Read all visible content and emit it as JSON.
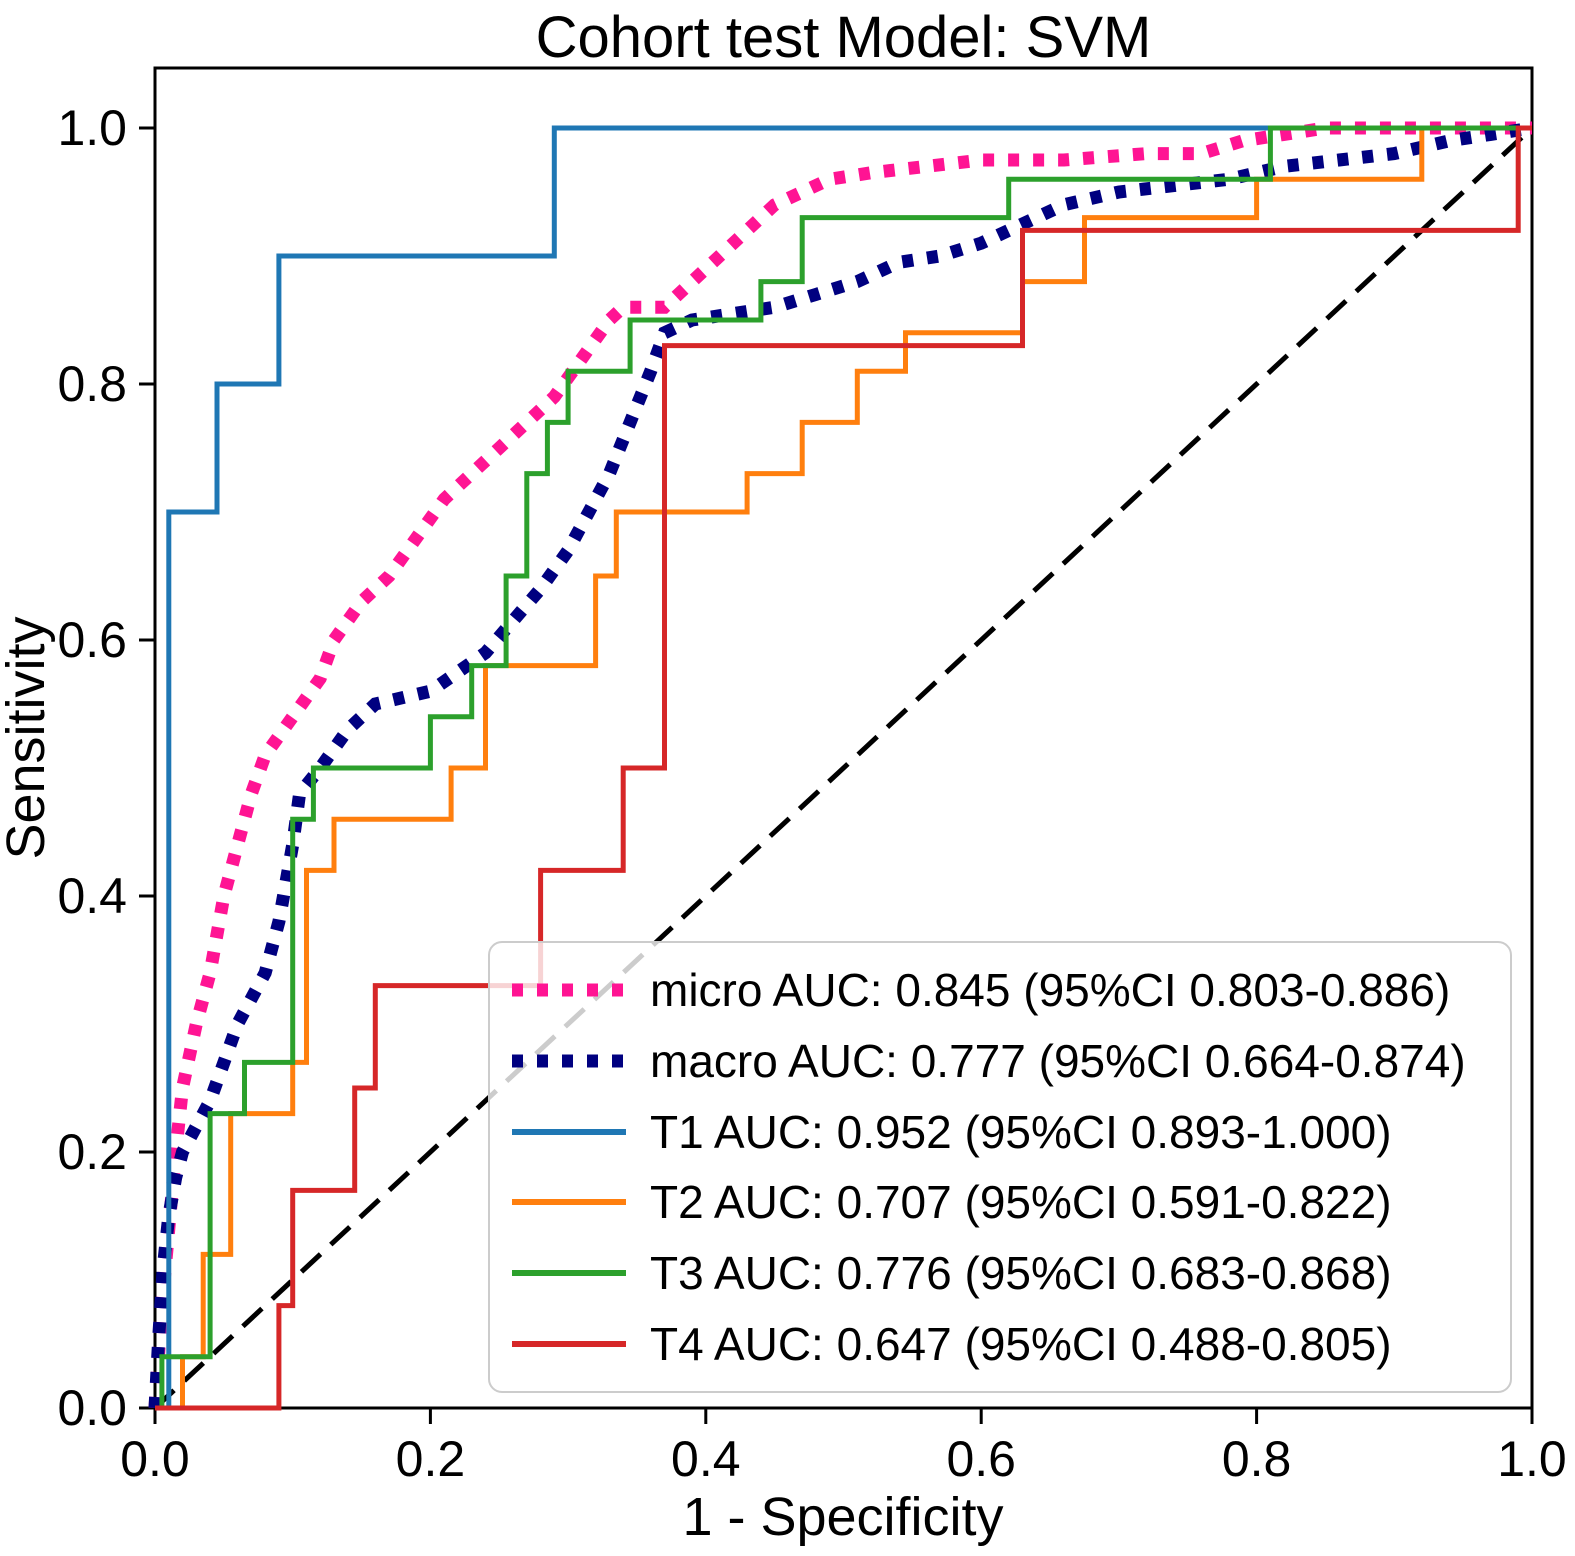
{
  "title": "Cohort test Model: SVM",
  "axes": {
    "xlabel": "1 - Specificity",
    "ylabel": "Sensitivity",
    "x_ticks": [
      "0.0",
      "0.2",
      "0.4",
      "0.6",
      "0.8",
      "1.0"
    ],
    "x_tick_values": [
      0,
      0.2,
      0.4,
      0.6,
      0.8,
      1.0
    ],
    "y_ticks": [
      "0.0",
      "0.2",
      "0.4",
      "0.6",
      "0.8",
      "1.0"
    ],
    "y_tick_values": [
      0,
      0.2,
      0.4,
      0.6,
      0.8,
      1.0
    ]
  },
  "chart_data": {
    "type": "line",
    "subtype": "roc-curves",
    "title": "Cohort test Model: SVM",
    "xlabel": "1 - Specificity",
    "ylabel": "Sensitivity",
    "xlim": [
      0,
      1.0
    ],
    "ylim": [
      0,
      1.047
    ],
    "grid": false,
    "legend_position": "lower right",
    "diagonal": {
      "name": "chance-line",
      "style": "dashed",
      "color": "#000000",
      "points": [
        [
          0,
          0
        ],
        [
          1,
          1
        ]
      ]
    },
    "series": [
      {
        "name": "micro",
        "label": "micro AUC: 0.845 (95%CI 0.803-0.886)",
        "auc": 0.845,
        "ci_low": 0.803,
        "ci_high": 0.886,
        "color": "#ff1493",
        "style": "dotted",
        "points": [
          [
            0,
            0
          ],
          [
            0.005,
            0.08
          ],
          [
            0.01,
            0.14
          ],
          [
            0.015,
            0.2
          ],
          [
            0.02,
            0.25
          ],
          [
            0.03,
            0.3
          ],
          [
            0.04,
            0.34
          ],
          [
            0.05,
            0.4
          ],
          [
            0.06,
            0.44
          ],
          [
            0.07,
            0.48
          ],
          [
            0.08,
            0.51
          ],
          [
            0.1,
            0.54
          ],
          [
            0.12,
            0.57
          ],
          [
            0.13,
            0.6
          ],
          [
            0.15,
            0.63
          ],
          [
            0.17,
            0.65
          ],
          [
            0.19,
            0.68
          ],
          [
            0.21,
            0.71
          ],
          [
            0.23,
            0.73
          ],
          [
            0.25,
            0.75
          ],
          [
            0.27,
            0.77
          ],
          [
            0.29,
            0.79
          ],
          [
            0.31,
            0.82
          ],
          [
            0.33,
            0.85
          ],
          [
            0.34,
            0.86
          ],
          [
            0.37,
            0.86
          ],
          [
            0.39,
            0.88
          ],
          [
            0.41,
            0.9
          ],
          [
            0.43,
            0.92
          ],
          [
            0.45,
            0.94
          ],
          [
            0.47,
            0.95
          ],
          [
            0.49,
            0.96
          ],
          [
            0.52,
            0.965
          ],
          [
            0.56,
            0.97
          ],
          [
            0.6,
            0.975
          ],
          [
            0.66,
            0.975
          ],
          [
            0.72,
            0.98
          ],
          [
            0.76,
            0.98
          ],
          [
            0.79,
            0.99
          ],
          [
            0.82,
            0.995
          ],
          [
            0.85,
            1.0
          ],
          [
            1,
            1
          ]
        ]
      },
      {
        "name": "macro",
        "label": "macro AUC: 0.777 (95%CI 0.664-0.874)",
        "auc": 0.777,
        "ci_low": 0.664,
        "ci_high": 0.874,
        "color": "#000080",
        "style": "dotted",
        "points": [
          [
            0,
            0
          ],
          [
            0.003,
            0.06
          ],
          [
            0.006,
            0.11
          ],
          [
            0.01,
            0.15
          ],
          [
            0.015,
            0.18
          ],
          [
            0.02,
            0.2
          ],
          [
            0.03,
            0.22
          ],
          [
            0.04,
            0.24
          ],
          [
            0.05,
            0.27
          ],
          [
            0.06,
            0.3
          ],
          [
            0.07,
            0.32
          ],
          [
            0.08,
            0.34
          ],
          [
            0.09,
            0.38
          ],
          [
            0.1,
            0.44
          ],
          [
            0.105,
            0.48
          ],
          [
            0.12,
            0.5
          ],
          [
            0.14,
            0.53
          ],
          [
            0.16,
            0.55
          ],
          [
            0.18,
            0.555
          ],
          [
            0.2,
            0.56
          ],
          [
            0.22,
            0.575
          ],
          [
            0.24,
            0.59
          ],
          [
            0.26,
            0.615
          ],
          [
            0.28,
            0.64
          ],
          [
            0.3,
            0.67
          ],
          [
            0.315,
            0.7
          ],
          [
            0.33,
            0.73
          ],
          [
            0.345,
            0.77
          ],
          [
            0.36,
            0.81
          ],
          [
            0.37,
            0.84
          ],
          [
            0.39,
            0.85
          ],
          [
            0.42,
            0.855
          ],
          [
            0.45,
            0.86
          ],
          [
            0.48,
            0.87
          ],
          [
            0.51,
            0.88
          ],
          [
            0.54,
            0.895
          ],
          [
            0.57,
            0.9
          ],
          [
            0.6,
            0.91
          ],
          [
            0.63,
            0.925
          ],
          [
            0.66,
            0.94
          ],
          [
            0.7,
            0.95
          ],
          [
            0.74,
            0.955
          ],
          [
            0.78,
            0.96
          ],
          [
            0.82,
            0.97
          ],
          [
            0.86,
            0.975
          ],
          [
            0.9,
            0.98
          ],
          [
            0.94,
            0.99
          ],
          [
            0.97,
            0.995
          ],
          [
            1,
            1
          ]
        ]
      },
      {
        "name": "T1",
        "label": "T1 AUC: 0.952 (95%CI 0.893-1.000)",
        "auc": 0.952,
        "ci_low": 0.893,
        "ci_high": 1.0,
        "color": "#1f77b4",
        "style": "solid",
        "points": [
          [
            0,
            0
          ],
          [
            0.01,
            0
          ],
          [
            0.01,
            0.7
          ],
          [
            0.045,
            0.7
          ],
          [
            0.045,
            0.8
          ],
          [
            0.09,
            0.8
          ],
          [
            0.09,
            0.9
          ],
          [
            0.29,
            0.9
          ],
          [
            0.29,
            1.0
          ],
          [
            1,
            1
          ]
        ]
      },
      {
        "name": "T2",
        "label": "T2 AUC: 0.707 (95%CI 0.591-0.822)",
        "auc": 0.707,
        "ci_low": 0.591,
        "ci_high": 0.822,
        "color": "#ff7f0e",
        "style": "solid",
        "points": [
          [
            0,
            0
          ],
          [
            0.02,
            0
          ],
          [
            0.02,
            0.04
          ],
          [
            0.035,
            0.04
          ],
          [
            0.035,
            0.12
          ],
          [
            0.055,
            0.12
          ],
          [
            0.055,
            0.23
          ],
          [
            0.1,
            0.23
          ],
          [
            0.1,
            0.27
          ],
          [
            0.11,
            0.27
          ],
          [
            0.11,
            0.42
          ],
          [
            0.13,
            0.42
          ],
          [
            0.13,
            0.46
          ],
          [
            0.215,
            0.46
          ],
          [
            0.215,
            0.5
          ],
          [
            0.24,
            0.5
          ],
          [
            0.24,
            0.58
          ],
          [
            0.32,
            0.58
          ],
          [
            0.32,
            0.65
          ],
          [
            0.335,
            0.65
          ],
          [
            0.335,
            0.7
          ],
          [
            0.43,
            0.7
          ],
          [
            0.43,
            0.73
          ],
          [
            0.47,
            0.73
          ],
          [
            0.47,
            0.77
          ],
          [
            0.51,
            0.77
          ],
          [
            0.51,
            0.81
          ],
          [
            0.545,
            0.81
          ],
          [
            0.545,
            0.84
          ],
          [
            0.63,
            0.84
          ],
          [
            0.63,
            0.88
          ],
          [
            0.675,
            0.88
          ],
          [
            0.675,
            0.93
          ],
          [
            0.8,
            0.93
          ],
          [
            0.8,
            0.96
          ],
          [
            0.92,
            0.96
          ],
          [
            0.92,
            1.0
          ],
          [
            1,
            1
          ]
        ]
      },
      {
        "name": "T3",
        "label": "T3 AUC: 0.776 (95%CI 0.683-0.868)",
        "auc": 0.776,
        "ci_low": 0.683,
        "ci_high": 0.868,
        "color": "#2ca02c",
        "style": "solid",
        "points": [
          [
            0,
            0
          ],
          [
            0.005,
            0
          ],
          [
            0.005,
            0.04
          ],
          [
            0.04,
            0.04
          ],
          [
            0.04,
            0.23
          ],
          [
            0.065,
            0.23
          ],
          [
            0.065,
            0.27
          ],
          [
            0.1,
            0.27
          ],
          [
            0.1,
            0.46
          ],
          [
            0.115,
            0.46
          ],
          [
            0.115,
            0.5
          ],
          [
            0.2,
            0.5
          ],
          [
            0.2,
            0.54
          ],
          [
            0.23,
            0.54
          ],
          [
            0.23,
            0.58
          ],
          [
            0.255,
            0.58
          ],
          [
            0.255,
            0.65
          ],
          [
            0.27,
            0.65
          ],
          [
            0.27,
            0.73
          ],
          [
            0.285,
            0.73
          ],
          [
            0.285,
            0.77
          ],
          [
            0.3,
            0.77
          ],
          [
            0.3,
            0.81
          ],
          [
            0.345,
            0.81
          ],
          [
            0.345,
            0.85
          ],
          [
            0.44,
            0.85
          ],
          [
            0.44,
            0.88
          ],
          [
            0.47,
            0.88
          ],
          [
            0.47,
            0.93
          ],
          [
            0.62,
            0.93
          ],
          [
            0.62,
            0.96
          ],
          [
            0.81,
            0.96
          ],
          [
            0.81,
            1.0
          ],
          [
            1,
            1
          ]
        ]
      },
      {
        "name": "T4",
        "label": "T4 AUC: 0.647 (95%CI 0.488-0.805)",
        "auc": 0.647,
        "ci_low": 0.488,
        "ci_high": 0.805,
        "color": "#d62728",
        "style": "solid",
        "points": [
          [
            0,
            0
          ],
          [
            0.09,
            0
          ],
          [
            0.09,
            0.08
          ],
          [
            0.1,
            0.08
          ],
          [
            0.1,
            0.17
          ],
          [
            0.145,
            0.17
          ],
          [
            0.145,
            0.25
          ],
          [
            0.16,
            0.25
          ],
          [
            0.16,
            0.33
          ],
          [
            0.28,
            0.33
          ],
          [
            0.28,
            0.42
          ],
          [
            0.34,
            0.42
          ],
          [
            0.34,
            0.5
          ],
          [
            0.37,
            0.5
          ],
          [
            0.37,
            0.83
          ],
          [
            0.63,
            0.83
          ],
          [
            0.63,
            0.92
          ],
          [
            0.99,
            0.92
          ],
          [
            0.99,
            1.0
          ],
          [
            1,
            1
          ]
        ]
      }
    ]
  }
}
